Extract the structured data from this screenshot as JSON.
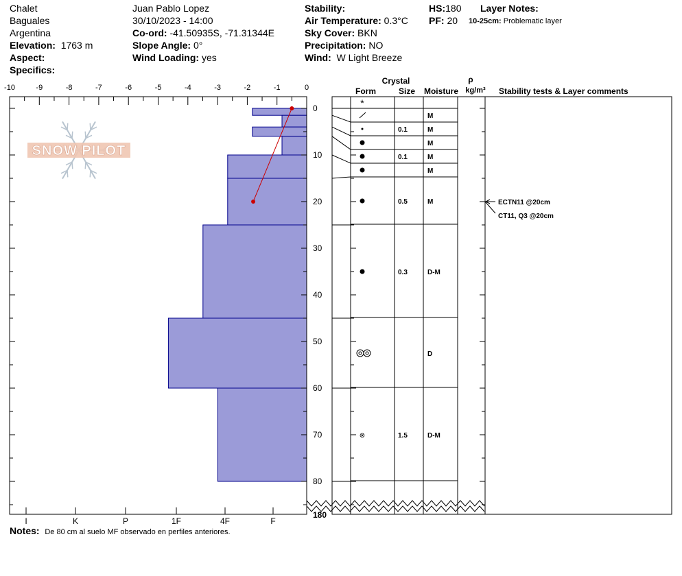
{
  "header": {
    "location": "Chalet",
    "region": "Baguales",
    "country": "Argentina",
    "elevation_label": "Elevation:",
    "elevation_value": "1763 m",
    "aspect_label": "Aspect:",
    "aspect_value": "",
    "specifics_label": "Specifics:",
    "specifics_value": "",
    "observer": "Juan Pablo  Lopez",
    "datetime": "30/10/2023 - 14:00",
    "coord_label": "Co-ord:",
    "coord_value": "-41.50935S, -71.31344E",
    "slope_label": "Slope Angle:",
    "slope_value": "0°",
    "wind_loading_label": "Wind Loading:",
    "wind_loading_value": "yes",
    "stability_label": "Stability:",
    "stability_value": "",
    "air_temp_label": "Air Temperature:",
    "air_temp_value": "0.3°C",
    "sky_label": "Sky Cover:",
    "sky_value": "BKN",
    "precip_label": "Precipitation:",
    "precip_value": "NO",
    "wind_label": "Wind:",
    "wind_value": "W Light Breeze",
    "hs_label": "HS:",
    "hs_value": "180",
    "pf_label": "PF:",
    "pf_value": "20",
    "layer_notes_label": "Layer Notes:",
    "layer_note_depth": "10-25cm:",
    "layer_note_text": "Problematic layer"
  },
  "logo": {
    "text": "SNOW PILOT"
  },
  "columns": {
    "crystal": "Crystal",
    "form": "Form",
    "size": "Size",
    "moisture": "Moisture",
    "rho": "ρ",
    "density_unit": "kg/m³",
    "stability_comments": "Stability tests & Layer comments"
  },
  "notes": {
    "label": "Notes:",
    "text": "De 80 cm al suelo MF observado en perfiles anteriores."
  },
  "colors": {
    "hardness_fill": "#9b9bd8",
    "hardness_stroke": "#00008b",
    "temp_line": "#cc0000"
  },
  "chart_data": {
    "type": "bar",
    "temperature_axis": {
      "ticks": [
        "-10",
        "-9",
        "-8",
        "-7",
        "-6",
        "-5",
        "-4",
        "-3",
        "-2",
        "-1",
        "0"
      ],
      "range": [
        -10,
        0
      ]
    },
    "hardness_axis": {
      "ticks": [
        "I",
        "K",
        "P",
        "1F",
        "4F",
        "F"
      ]
    },
    "depth_axis": {
      "ticks": [
        "0",
        "10",
        "20",
        "30",
        "40",
        "50",
        "60",
        "70",
        "80"
      ],
      "bottom_label": "180",
      "range": [
        0,
        80
      ]
    },
    "layers": [
      {
        "top": 0,
        "bottom": 1.5,
        "hardness": "4F-",
        "hardness_value": 1.1,
        "form": "+",
        "size": "",
        "moisture": ""
      },
      {
        "top": 1.5,
        "bottom": 4,
        "hardness": "F+",
        "hardness_value": 0.5,
        "form": "/",
        "size": "",
        "moisture": "M"
      },
      {
        "top": 4,
        "bottom": 6,
        "hardness": "4F-",
        "hardness_value": 1.1,
        "form": "·",
        "size": "0.1",
        "moisture": "M"
      },
      {
        "top": 6,
        "bottom": 10,
        "hardness": "F+",
        "hardness_value": 0.5,
        "form": "●",
        "size": "",
        "moisture": "M"
      },
      {
        "top": 10,
        "bottom": 15,
        "hardness": "1F",
        "hardness_value": 1.6,
        "form": "●",
        "size": "0.1",
        "moisture": "M"
      },
      {
        "top": 15,
        "bottom": 25,
        "hardness": "1F",
        "hardness_value": 1.6,
        "form": "●",
        "size": "",
        "moisture": "M"
      },
      {
        "top": 25,
        "bottom": 45,
        "hardness": "P",
        "hardness_value": 2.1,
        "form": "●",
        "size": "0.5",
        "moisture": "M"
      },
      {
        "top": 45,
        "bottom": 60,
        "hardness": "K-",
        "hardness_value": 2.8,
        "form": "●",
        "size": "0.3",
        "moisture": "D-M"
      },
      {
        "top": 60,
        "bottom": 80,
        "hardness": "1F+",
        "hardness_value": 1.8,
        "form": "◎◎",
        "size": "",
        "moisture": "D"
      }
    ],
    "crystal_rows": [
      {
        "label_depth": 0.9,
        "top": 0,
        "bottom": 1.5,
        "form": "*",
        "size": "",
        "moisture": ""
      },
      {
        "label_depth": 1.5,
        "top": 1.5,
        "bottom": 3,
        "form": "/",
        "size": "",
        "moisture": "M"
      },
      {
        "label_depth": 4.5,
        "top": 3,
        "bottom": 6,
        "form": "·",
        "size": "0.1",
        "moisture": "M"
      },
      {
        "label_depth": 7.5,
        "top": 6,
        "bottom": 9,
        "form": "●",
        "size": "",
        "moisture": "M"
      },
      {
        "label_depth": 10.5,
        "top": 9,
        "bottom": 12,
        "form": "●",
        "size": "0.1",
        "moisture": "M"
      },
      {
        "label_depth": 13.5,
        "top": 12,
        "bottom": 15,
        "form": "●",
        "size": "",
        "moisture": "M"
      },
      {
        "label_depth": 20,
        "top": 15,
        "bottom": 25,
        "form": "●",
        "size": "0.5",
        "moisture": "M"
      },
      {
        "label_depth": 35,
        "top": 25,
        "bottom": 45,
        "form": "●",
        "size": "0.3",
        "moisture": "D-M"
      },
      {
        "label_depth": 53,
        "top": 45,
        "bottom": 60,
        "form": "◎◎",
        "size": "",
        "moisture": "D"
      },
      {
        "label_depth": 70,
        "top": 60,
        "bottom": 80,
        "form": "⊗",
        "size": "1.5",
        "moisture": "D-M"
      }
    ],
    "temperature_profile": [
      {
        "depth": 0,
        "temp": -0.5
      },
      {
        "depth": 20,
        "temp": -1.8
      }
    ],
    "stability_tests": [
      {
        "depth": 20,
        "text": "ECTN11 @20cm"
      },
      {
        "depth": 20,
        "text": "CT11, Q3 @20cm"
      }
    ]
  }
}
